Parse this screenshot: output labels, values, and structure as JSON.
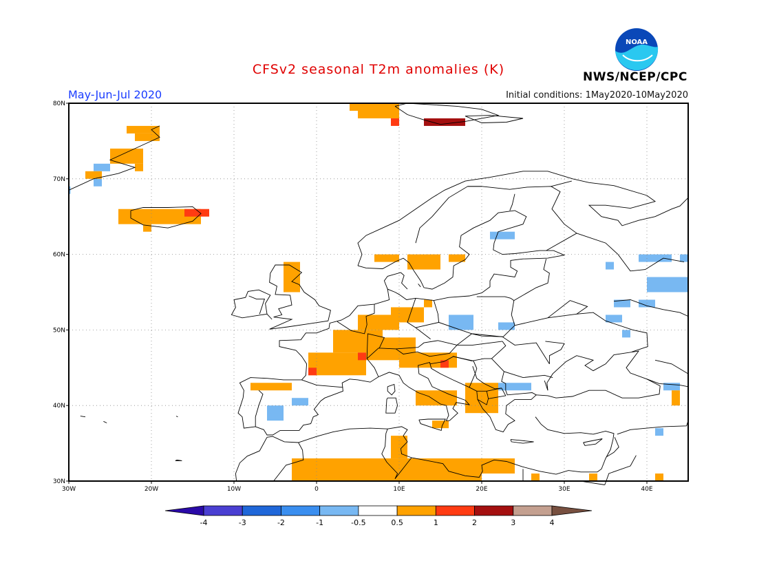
{
  "header": {
    "title": "CFSv2 seasonal T2m anomalies (K)",
    "period": "May-Jun-Jul 2020",
    "initial_conditions": "Initial conditions: 1May2020-10May2020",
    "agency": "NWS/NCEP/CPC"
  },
  "logo": {
    "icon": "noaa-logo-icon",
    "text": "NOAA"
  },
  "map": {
    "lon_range": [
      -30,
      45
    ],
    "lat_range": [
      30,
      80
    ],
    "lat_ticks": [
      "80N",
      "70N",
      "60N",
      "50N",
      "40N",
      "30N"
    ],
    "lon_ticks": [
      "30W",
      "20W",
      "10W",
      "0",
      "10E",
      "20E",
      "30E",
      "40E"
    ],
    "grid": true,
    "anomaly_cells": [
      {
        "cls": "pos1",
        "lon": [
          -23,
          -19
        ],
        "lat": [
          76,
          77
        ]
      },
      {
        "cls": "pos1",
        "lon": [
          -22,
          -19
        ],
        "lat": [
          75,
          76
        ]
      },
      {
        "cls": "pos1",
        "lon": [
          -25,
          -21
        ],
        "lat": [
          72,
          74
        ]
      },
      {
        "cls": "pos1",
        "lon": [
          -22,
          -21
        ],
        "lat": [
          71,
          72
        ]
      },
      {
        "cls": "neg1",
        "lon": [
          -27,
          -25
        ],
        "lat": [
          71,
          72
        ]
      },
      {
        "cls": "pos1",
        "lon": [
          -28,
          -26
        ],
        "lat": [
          70,
          71
        ]
      },
      {
        "cls": "neg1",
        "lon": [
          -27,
          -26
        ],
        "lat": [
          69,
          70
        ]
      },
      {
        "cls": "neg1",
        "lon": [
          -30,
          -29.8
        ],
        "lat": [
          68,
          69
        ]
      },
      {
        "cls": "pos1",
        "lon": [
          -24,
          -19
        ],
        "lat": [
          64,
          66
        ]
      },
      {
        "cls": "pos1",
        "lon": [
          -19,
          -14
        ],
        "lat": [
          64,
          66
        ]
      },
      {
        "cls": "pos2",
        "lon": [
          -16,
          -13
        ],
        "lat": [
          65,
          66
        ]
      },
      {
        "cls": "pos1",
        "lon": [
          -21,
          -20
        ],
        "lat": [
          63,
          64
        ]
      },
      {
        "cls": "pos1",
        "lon": [
          5,
          10
        ],
        "lat": [
          78,
          80
        ]
      },
      {
        "cls": "pos2",
        "lon": [
          9,
          10
        ],
        "lat": [
          77,
          78
        ]
      },
      {
        "cls": "pos3",
        "lon": [
          13,
          18
        ],
        "lat": [
          77,
          78
        ]
      },
      {
        "cls": "pos1",
        "lon": [
          4,
          5
        ],
        "lat": [
          79,
          80
        ]
      },
      {
        "cls": "neg1",
        "lon": [
          21,
          24
        ],
        "lat": [
          62,
          63
        ]
      },
      {
        "cls": "pos1",
        "lon": [
          7,
          10
        ],
        "lat": [
          59,
          60
        ]
      },
      {
        "cls": "pos1",
        "lon": [
          11,
          15
        ],
        "lat": [
          58,
          60
        ]
      },
      {
        "cls": "pos1",
        "lon": [
          16,
          18
        ],
        "lat": [
          59,
          60
        ]
      },
      {
        "cls": "pos1",
        "lon": [
          -4,
          -2
        ],
        "lat": [
          55,
          59
        ]
      },
      {
        "cls": "pos1",
        "lon": [
          9,
          13
        ],
        "lat": [
          51,
          53
        ]
      },
      {
        "cls": "pos1",
        "lon": [
          13,
          14
        ],
        "lat": [
          53,
          54
        ]
      },
      {
        "cls": "neg1",
        "lon": [
          16,
          19
        ],
        "lat": [
          50,
          52
        ]
      },
      {
        "cls": "neg1",
        "lon": [
          22,
          24
        ],
        "lat": [
          50,
          51
        ]
      },
      {
        "cls": "pos1",
        "lon": [
          5,
          10
        ],
        "lat": [
          50,
          52
        ]
      },
      {
        "cls": "pos1",
        "lon": [
          2,
          8
        ],
        "lat": [
          47,
          50
        ]
      },
      {
        "cls": "pos1",
        "lon": [
          -1,
          6
        ],
        "lat": [
          44,
          47
        ]
      },
      {
        "cls": "pos1",
        "lon": [
          6,
          12
        ],
        "lat": [
          46,
          49
        ]
      },
      {
        "cls": "pos1",
        "lon": [
          10,
          17
        ],
        "lat": [
          45,
          47
        ]
      },
      {
        "cls": "pos2",
        "lon": [
          5,
          6
        ],
        "lat": [
          46,
          47
        ]
      },
      {
        "cls": "pos2",
        "lon": [
          15,
          16
        ],
        "lat": [
          45,
          46
        ]
      },
      {
        "cls": "pos2",
        "lon": [
          -1,
          0
        ],
        "lat": [
          44,
          45
        ]
      },
      {
        "cls": "pos1",
        "lon": [
          -8,
          -3
        ],
        "lat": [
          42,
          43
        ]
      },
      {
        "cls": "neg1",
        "lon": [
          -6,
          -4
        ],
        "lat": [
          38,
          40
        ]
      },
      {
        "cls": "neg1",
        "lon": [
          -3,
          -1
        ],
        "lat": [
          40,
          41
        ]
      },
      {
        "cls": "pos1",
        "lon": [
          12,
          17
        ],
        "lat": [
          40,
          42
        ]
      },
      {
        "cls": "pos1",
        "lon": [
          18,
          22
        ],
        "lat": [
          39,
          43
        ]
      },
      {
        "cls": "neg1",
        "lon": [
          22,
          26
        ],
        "lat": [
          42,
          43
        ]
      },
      {
        "cls": "pos1",
        "lon": [
          14,
          16
        ],
        "lat": [
          37,
          38
        ]
      },
      {
        "cls": "pos1",
        "lon": [
          -3,
          20
        ],
        "lat": [
          30,
          33
        ]
      },
      {
        "cls": "pos1",
        "lon": [
          9,
          11
        ],
        "lat": [
          33,
          36
        ]
      },
      {
        "cls": "pos1",
        "lon": [
          20,
          24
        ],
        "lat": [
          31,
          33
        ]
      },
      {
        "cls": "neg1",
        "lon": [
          35,
          37
        ],
        "lat": [
          51,
          52
        ]
      },
      {
        "cls": "neg1",
        "lon": [
          36,
          38
        ],
        "lat": [
          53,
          54
        ]
      },
      {
        "cls": "neg1",
        "lon": [
          39,
          41
        ],
        "lat": [
          53,
          54
        ]
      },
      {
        "cls": "neg1",
        "lon": [
          40,
          45
        ],
        "lat": [
          55,
          57
        ]
      },
      {
        "cls": "neg1",
        "lon": [
          39,
          43
        ],
        "lat": [
          59,
          60
        ]
      },
      {
        "cls": "neg1",
        "lon": [
          44,
          45
        ],
        "lat": [
          59,
          60
        ]
      },
      {
        "cls": "neg1",
        "lon": [
          35,
          36
        ],
        "lat": [
          58,
          59
        ]
      },
      {
        "cls": "neg1",
        "lon": [
          37,
          38
        ],
        "lat": [
          49,
          50
        ]
      },
      {
        "cls": "neg1",
        "lon": [
          42,
          44
        ],
        "lat": [
          42,
          43
        ]
      },
      {
        "cls": "pos1",
        "lon": [
          43,
          44
        ],
        "lat": [
          40,
          42
        ]
      },
      {
        "cls": "neg1",
        "lon": [
          41,
          42
        ],
        "lat": [
          36,
          37
        ]
      },
      {
        "cls": "pos1",
        "lon": [
          41,
          42
        ],
        "lat": [
          30,
          31
        ]
      },
      {
        "cls": "pos1",
        "lon": [
          26,
          27
        ],
        "lat": [
          30,
          31
        ]
      },
      {
        "cls": "pos1",
        "lon": [
          33,
          34
        ],
        "lat": [
          30,
          31
        ]
      }
    ]
  },
  "colorbar": {
    "labels": [
      "-4",
      "-3",
      "-2",
      "-1",
      "-0.5",
      "0.5",
      "1",
      "2",
      "3",
      "4"
    ],
    "colors": [
      "#2a0aa8",
      "#4a3fd2",
      "#1f67d9",
      "#3a8eef",
      "#78b8f2",
      "#ffffff",
      "#ffa200",
      "#ff3b12",
      "#a40f0f",
      "#c4a090",
      "#785040"
    ]
  },
  "legend_colors": {
    "neg1": "#78b8f2",
    "pos1": "#ffa200",
    "pos2": "#ff3b12",
    "pos3": "#a40f0f"
  }
}
